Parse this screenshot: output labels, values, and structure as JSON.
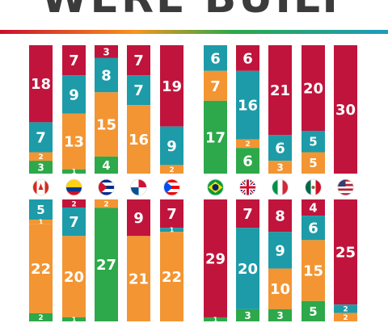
{
  "title": "WERE BUILT",
  "colors": {
    "red": "#c0143c",
    "teal": "#1d9ba8",
    "orange": "#f39532",
    "green": "#2da84a"
  },
  "chart_data": {
    "type": "bar",
    "stacked": true,
    "columns": [
      {
        "flag": "canada-flag",
        "segments": [
          {
            "color": "red",
            "value": 18
          },
          {
            "color": "teal",
            "value": 7
          },
          {
            "color": "orange",
            "value": 2
          },
          {
            "color": "green",
            "value": 3
          }
        ]
      },
      {
        "flag": "colombia-flag",
        "segments": [
          {
            "color": "red",
            "value": 7
          },
          {
            "color": "teal",
            "value": 9
          },
          {
            "color": "orange",
            "value": 13
          },
          {
            "color": "green",
            "value": 1
          }
        ]
      },
      {
        "flag": "cuba-flag",
        "segments": [
          {
            "color": "red",
            "value": 3
          },
          {
            "color": "teal",
            "value": 8
          },
          {
            "color": "orange",
            "value": 15
          },
          {
            "color": "green",
            "value": 4
          }
        ]
      },
      {
        "flag": "panama-flag",
        "segments": [
          {
            "color": "red",
            "value": 7
          },
          {
            "color": "teal",
            "value": 7
          },
          {
            "color": "orange",
            "value": 16
          }
        ]
      },
      {
        "flag": "puerto-rico-flag",
        "segments": [
          {
            "color": "red",
            "value": 19
          },
          {
            "color": "teal",
            "value": 9
          },
          {
            "color": "orange",
            "value": 2
          }
        ]
      },
      {
        "flag": "brazil-flag",
        "segments": [
          {
            "color": "teal",
            "value": 6
          },
          {
            "color": "orange",
            "value": 7
          },
          {
            "color": "green",
            "value": 17
          }
        ]
      },
      {
        "flag": "uk-flag",
        "segments": [
          {
            "color": "red",
            "value": 6
          },
          {
            "color": "teal",
            "value": 16
          },
          {
            "color": "orange",
            "value": 2
          },
          {
            "color": "green",
            "value": 6
          }
        ]
      },
      {
        "flag": "italy-flag",
        "segments": [
          {
            "color": "red",
            "value": 21
          },
          {
            "color": "teal",
            "value": 6
          },
          {
            "color": "orange",
            "value": 3
          }
        ]
      },
      {
        "flag": "mexico-flag",
        "segments": [
          {
            "color": "red",
            "value": 20
          },
          {
            "color": "teal",
            "value": 5
          },
          {
            "color": "orange",
            "value": 5
          }
        ]
      },
      {
        "flag": "usa-flag",
        "segments": [
          {
            "color": "red",
            "value": 30
          }
        ]
      },
      {
        "segments": [
          {
            "color": "teal",
            "value": 5
          },
          {
            "color": "orange",
            "value": 1
          },
          {
            "color": "orange",
            "value": 22
          },
          {
            "color": "green",
            "value": 2
          }
        ]
      },
      {
        "segments": [
          {
            "color": "red",
            "value": 2
          },
          {
            "color": "teal",
            "value": 7
          },
          {
            "color": "orange",
            "value": 20
          },
          {
            "color": "green",
            "value": 1
          }
        ]
      },
      {
        "segments": [
          {
            "color": "orange",
            "value": 2
          },
          {
            "color": "green",
            "value": 27
          }
        ]
      },
      {
        "segments": [
          {
            "color": "red",
            "value": 9
          },
          {
            "color": "orange",
            "value": 21
          }
        ]
      },
      {
        "segments": [
          {
            "color": "red",
            "value": 7
          },
          {
            "color": "teal",
            "value": 1
          },
          {
            "color": "orange",
            "value": 22
          }
        ]
      },
      {
        "segments": [
          {
            "color": "red",
            "value": 29
          },
          {
            "color": "green",
            "value": 1
          }
        ]
      },
      {
        "segments": [
          {
            "color": "red",
            "value": 7
          },
          {
            "color": "teal",
            "value": 20
          },
          {
            "color": "green",
            "value": 3
          }
        ]
      },
      {
        "segments": [
          {
            "color": "red",
            "value": 8
          },
          {
            "color": "teal",
            "value": 9
          },
          {
            "color": "orange",
            "value": 10
          },
          {
            "color": "green",
            "value": 3
          }
        ]
      },
      {
        "segments": [
          {
            "color": "red",
            "value": 4
          },
          {
            "color": "teal",
            "value": 6
          },
          {
            "color": "orange",
            "value": 15
          },
          {
            "color": "green",
            "value": 5
          }
        ]
      },
      {
        "segments": [
          {
            "color": "red",
            "value": 25
          },
          {
            "color": "teal",
            "value": 2
          },
          {
            "color": "orange",
            "value": 2
          }
        ]
      }
    ]
  }
}
